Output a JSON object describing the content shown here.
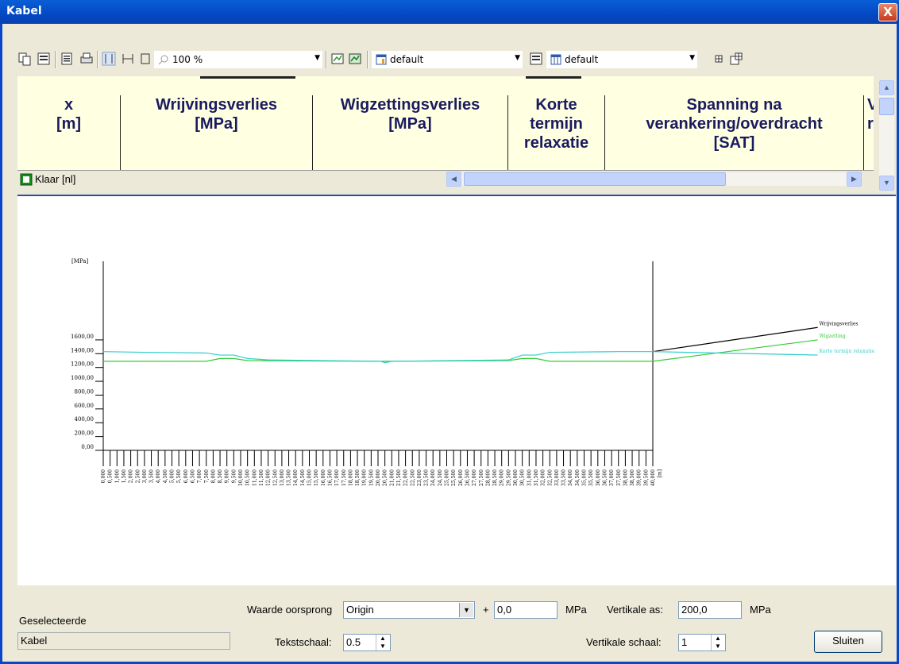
{
  "window": {
    "title": "Kabel",
    "close_symbol": "X"
  },
  "toolbar": {
    "zoom": "100 %",
    "layout_combo_1": "default",
    "layout_combo_2": "default"
  },
  "grid": {
    "columns": [
      {
        "line1": "x",
        "line2": "[m]",
        "line3": ""
      },
      {
        "line1": "Wrijvingsverlies",
        "line2": "[MPa]",
        "line3": ""
      },
      {
        "line1": "Wigzettingsverlies",
        "line2": "[MPa]",
        "line3": ""
      },
      {
        "line1": "Korte",
        "line2": "termijn",
        "line3": "relaxatie"
      },
      {
        "line1": "Spanning na",
        "line2": "verankering/overdracht",
        "line3": "[SAT]"
      },
      {
        "line1": "V",
        "line2": "r",
        "line3": ""
      }
    ],
    "status": "Klaar [nl]"
  },
  "chart_data": {
    "type": "line",
    "ylabel": "[MPa]",
    "xlabel": "[m]",
    "ylim": [
      0,
      1700
    ],
    "y_ticks": [
      "0,00",
      "200,00",
      "400,00",
      "600,00",
      "800,00",
      "1000,00",
      "1200,00",
      "1400,00",
      "1600,00"
    ],
    "x_ticks": [
      "0,000",
      "0,500",
      "1,000",
      "1,500",
      "2,000",
      "2,500",
      "3,000",
      "3,500",
      "4,000",
      "4,500",
      "5,000",
      "5,500",
      "6,000",
      "6,500",
      "7,000",
      "7,500",
      "8,000",
      "8,500",
      "9,000",
      "9,500",
      "10,000",
      "10,500",
      "11,000",
      "11,500",
      "12,000",
      "12,500",
      "13,000",
      "13,500",
      "14,000",
      "14,500",
      "15,000",
      "15,500",
      "16,000",
      "16,500",
      "17,000",
      "17,500",
      "18,000",
      "18,500",
      "19,000",
      "19,500",
      "20,000",
      "20,500",
      "21,000",
      "21,500",
      "22,000",
      "22,500",
      "23,000",
      "23,500",
      "24,000",
      "24,500",
      "25,000",
      "25,500",
      "26,000",
      "26,500",
      "27,000",
      "27,500",
      "28,000",
      "28,500",
      "29,000",
      "29,500",
      "30,000",
      "30,500",
      "31,000",
      "31,500",
      "32,000",
      "32,500",
      "33,000",
      "33,500",
      "34,000",
      "34,500",
      "35,000",
      "35,500",
      "36,000",
      "36,500",
      "37,000",
      "37,500",
      "38,000",
      "38,500",
      "39,000",
      "39,500",
      "40,000"
    ],
    "xlim": [
      0,
      40
    ],
    "series": [
      {
        "name": "Wrijvingsverlies",
        "color": "#000000",
        "x": [
          40,
          52
        ],
        "y": [
          1430,
          1780
        ]
      },
      {
        "name": "Wigzetting",
        "color": "#33cc33",
        "x": [
          0,
          3,
          7.5,
          8.5,
          9.5,
          10.5,
          20.2,
          29.5,
          30.5,
          31.5,
          32.5,
          37.5,
          40,
          52
        ],
        "y": [
          1290,
          1290,
          1290,
          1330,
          1330,
          1300,
          1290,
          1300,
          1330,
          1330,
          1290,
          1290,
          1290,
          1600
        ]
      },
      {
        "name": "Korte termijn relaxatie",
        "color": "#33cccc",
        "x": [
          0,
          3,
          7.5,
          8.5,
          9.5,
          10.5,
          12,
          20.2,
          20.5,
          21,
          29.5,
          30.5,
          31.5,
          32.5,
          37.5,
          40,
          52
        ],
        "y": [
          1430,
          1420,
          1410,
          1380,
          1380,
          1330,
          1310,
          1290,
          1270,
          1290,
          1310,
          1380,
          1380,
          1420,
          1430,
          1430,
          1380
        ]
      }
    ]
  },
  "bottom": {
    "selected_label": "Geselecteerde",
    "selected_value": "Kabel",
    "origin_label": "Waarde oorsprong",
    "origin_value": "Origin",
    "plus": "+",
    "offset_value": "0,0",
    "offset_unit": "MPa",
    "vertical_axis_label": "Vertikale as:",
    "vertical_axis_value": "200,0",
    "vertical_axis_unit": "MPa",
    "text_scale_label": "Tekstschaal:",
    "text_scale_value": "0.5",
    "vertical_scale_label": "Vertikale schaal:",
    "vertical_scale_value": "1",
    "close_button": "Sluiten"
  }
}
